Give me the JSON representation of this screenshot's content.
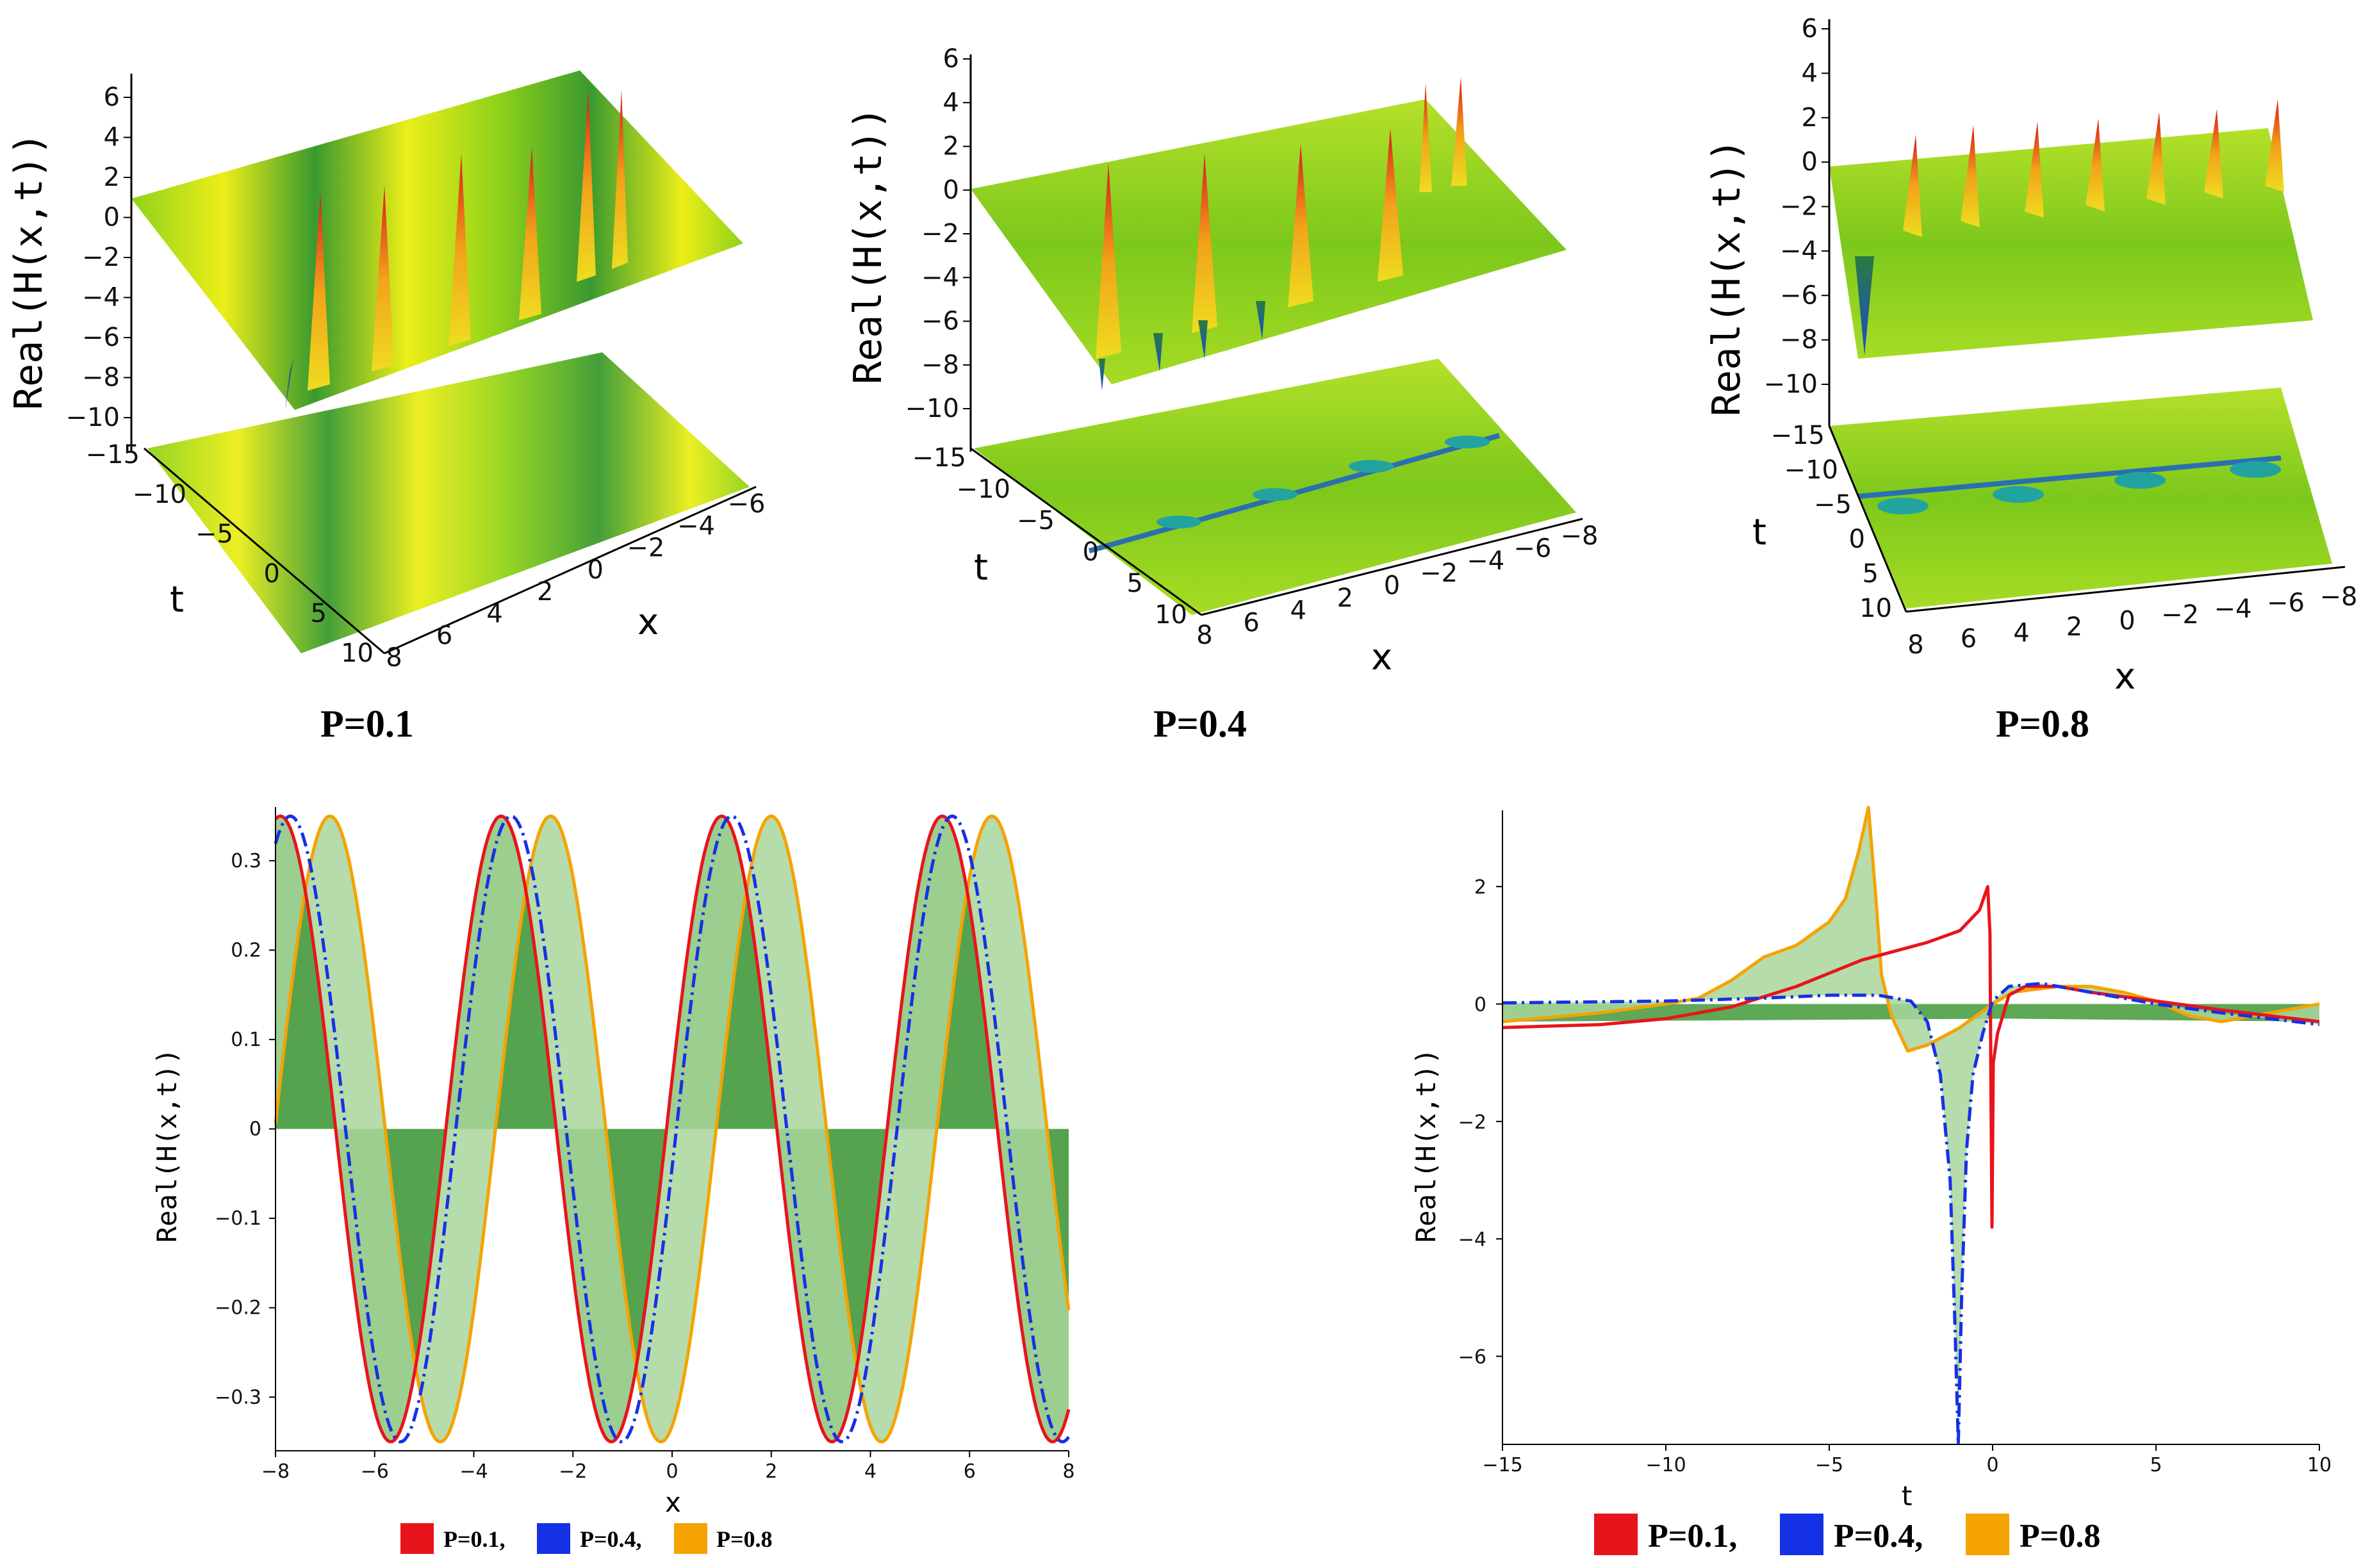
{
  "colors": {
    "p01": "#e8141c",
    "p04": "#1531e6",
    "p08": "#f5a300",
    "fill_dark": "#4c9e44",
    "fill_light": "#a9d69c",
    "surface_green": "#8fd21a",
    "surface_yellow": "#ecee18",
    "surface_dark": "#2f8f2c"
  },
  "chart_data": [
    {
      "type": "surface3d",
      "panel": "P=0.1",
      "title": "P=0.1",
      "zlabel": "Real(H(x,t))",
      "z_ticks": [
        "6",
        "4",
        "2",
        "0",
        "−2",
        "−4",
        "−6",
        "−8",
        "−10"
      ],
      "t_label": "t",
      "t_ticks": [
        "−15",
        "−10",
        "−5",
        "0",
        "5",
        "10"
      ],
      "x_label": "x",
      "x_ticks": [
        "8",
        "6",
        "4",
        "2",
        "0",
        "−2",
        "−4",
        "−6"
      ],
      "zlim": [
        -10,
        6
      ],
      "tlim": [
        -15,
        10
      ],
      "xlim": [
        8,
        -6
      ]
    },
    {
      "type": "surface3d",
      "panel": "P=0.4",
      "title": "P=0.4",
      "zlabel": "Real(H(x,t))",
      "z_ticks": [
        "6",
        "4",
        "2",
        "0",
        "−2",
        "−4",
        "−6",
        "−8",
        "−10"
      ],
      "t_label": "t",
      "t_ticks": [
        "−15",
        "−10",
        "−5",
        "0",
        "5",
        "10"
      ],
      "x_label": "x",
      "x_ticks": [
        "8",
        "6",
        "4",
        "2",
        "0",
        "−2",
        "−4",
        "−6",
        "−8"
      ],
      "zlim": [
        -10,
        6
      ],
      "tlim": [
        -15,
        10
      ],
      "xlim": [
        8,
        -8
      ]
    },
    {
      "type": "surface3d",
      "panel": "P=0.8",
      "title": "P=0.8",
      "zlabel": "Real(H(x,t))",
      "z_ticks": [
        "6",
        "4",
        "2",
        "0",
        "−2",
        "−4",
        "−6",
        "−8",
        "−10"
      ],
      "t_label": "t",
      "t_ticks": [
        "−15",
        "−10",
        "−5",
        "0",
        "5",
        "10"
      ],
      "x_label": "x",
      "x_ticks": [
        "8",
        "6",
        "4",
        "2",
        "0",
        "−2",
        "−4",
        "−6",
        "−8"
      ],
      "zlim": [
        -10,
        6
      ],
      "tlim": [
        -15,
        10
      ],
      "xlim": [
        8,
        -8
      ]
    },
    {
      "type": "line",
      "panel": "x-profile",
      "xlabel": "x",
      "ylabel": "Real(H(x,t))",
      "xlim": [
        -8,
        8
      ],
      "ylim": [
        -0.36,
        0.36
      ],
      "x_ticks": [
        -8,
        -6,
        -4,
        -2,
        0,
        2,
        4,
        6,
        8
      ],
      "y_ticks": [
        0.3,
        0.2,
        0.1,
        0,
        -0.1,
        -0.2,
        -0.3
      ],
      "x_tick_labels": [
        "−8",
        "−6",
        "−4",
        "−2",
        "0",
        "2",
        "4",
        "6",
        "8"
      ],
      "y_tick_labels": [
        "0.3",
        "0.2",
        "0.1",
        "0",
        "−0.1",
        "−0.2",
        "−0.3"
      ],
      "model": {
        "amplitude": 0.35,
        "period": 4.45
      },
      "series": [
        {
          "name": "P=0.1,",
          "color_key": "p01",
          "phase_shift": 0.0,
          "style": "solid",
          "peaks_x": [
            -7.9,
            -3.4,
            1.0,
            5.4
          ]
        },
        {
          "name": "P=0.4,",
          "color_key": "p04",
          "phase_shift": 0.2,
          "style": "dashdot",
          "peaks_x": [
            -7.7,
            -3.2,
            1.2,
            5.6
          ]
        },
        {
          "name": "P=0.8",
          "color_key": "p08",
          "phase_shift": 1.0,
          "style": "solid",
          "peaks_x": [
            -6.9,
            -2.4,
            2.0,
            6.4
          ]
        }
      ],
      "legend_position": "bottom-center"
    },
    {
      "type": "line",
      "panel": "t-profile",
      "xlabel": "t",
      "ylabel": "Real(H(x,t))",
      "xlim": [
        -15,
        10
      ],
      "ylim": [
        -7.5,
        3.3
      ],
      "x_ticks": [
        -15,
        -10,
        -5,
        0,
        5,
        10
      ],
      "y_ticks": [
        2,
        0,
        -2,
        -4,
        -6
      ],
      "x_tick_labels": [
        "−15",
        "−10",
        "−5",
        "0",
        "5",
        "10"
      ],
      "y_tick_labels": [
        "2",
        "0",
        "−2",
        "−4",
        "−6"
      ],
      "series": [
        {
          "name": "P=0.1,",
          "color_key": "p01",
          "style": "solid",
          "points": [
            [
              -15,
              -0.4
            ],
            [
              -12,
              -0.35
            ],
            [
              -10,
              -0.25
            ],
            [
              -8,
              -0.05
            ],
            [
              -6,
              0.3
            ],
            [
              -4,
              0.75
            ],
            [
              -2,
              1.05
            ],
            [
              -1,
              1.25
            ],
            [
              -0.4,
              1.6
            ],
            [
              -0.15,
              2.0
            ],
            [
              -0.08,
              1.2
            ],
            [
              -0.05,
              -1.5
            ],
            [
              -0.02,
              -3.8
            ],
            [
              0.02,
              -1.0
            ],
            [
              0.15,
              -0.5
            ],
            [
              0.5,
              0.15
            ],
            [
              1,
              0.3
            ],
            [
              2,
              0.3
            ],
            [
              3,
              0.2
            ],
            [
              5,
              0.05
            ],
            [
              7,
              -0.1
            ],
            [
              10,
              -0.3
            ]
          ]
        },
        {
          "name": "P=0.4,",
          "color_key": "p04",
          "style": "dashdot",
          "points": [
            [
              -15,
              0.02
            ],
            [
              -10,
              0.05
            ],
            [
              -7,
              0.1
            ],
            [
              -5,
              0.15
            ],
            [
              -3.5,
              0.15
            ],
            [
              -2.5,
              0.05
            ],
            [
              -2,
              -0.3
            ],
            [
              -1.6,
              -1.2
            ],
            [
              -1.3,
              -3.0
            ],
            [
              -1.15,
              -5.5
            ],
            [
              -1.05,
              -7.5
            ],
            [
              -0.95,
              -5.0
            ],
            [
              -0.8,
              -2.5
            ],
            [
              -0.6,
              -1.2
            ],
            [
              -0.3,
              -0.5
            ],
            [
              0,
              0.05
            ],
            [
              0.5,
              0.3
            ],
            [
              1.5,
              0.35
            ],
            [
              3,
              0.2
            ],
            [
              5,
              0.0
            ],
            [
              7,
              -0.15
            ],
            [
              10,
              -0.35
            ]
          ]
        },
        {
          "name": "P=0.8",
          "color_key": "p08",
          "style": "solid",
          "points": [
            [
              -15,
              -0.3
            ],
            [
              -12,
              -0.15
            ],
            [
              -10,
              0.0
            ],
            [
              -9,
              0.1
            ],
            [
              -8,
              0.4
            ],
            [
              -7,
              0.8
            ],
            [
              -6,
              1.0
            ],
            [
              -5,
              1.4
            ],
            [
              -4.5,
              1.8
            ],
            [
              -4.1,
              2.6
            ],
            [
              -3.8,
              3.35
            ],
            [
              -3.6,
              2.0
            ],
            [
              -3.4,
              0.5
            ],
            [
              -3.1,
              -0.2
            ],
            [
              -2.6,
              -0.8
            ],
            [
              -2,
              -0.7
            ],
            [
              -1,
              -0.4
            ],
            [
              0,
              0.0
            ],
            [
              0.6,
              0.2
            ],
            [
              2,
              0.3
            ],
            [
              3,
              0.3
            ],
            [
              4,
              0.2
            ],
            [
              5,
              0.05
            ],
            [
              6,
              -0.2
            ],
            [
              7,
              -0.3
            ],
            [
              8,
              -0.2
            ],
            [
              10,
              0.0
            ]
          ]
        }
      ],
      "legend_position": "bottom-center"
    }
  ],
  "legend": {
    "labels": [
      "P=0.1,",
      "P=0.4,",
      "P=0.8"
    ]
  }
}
